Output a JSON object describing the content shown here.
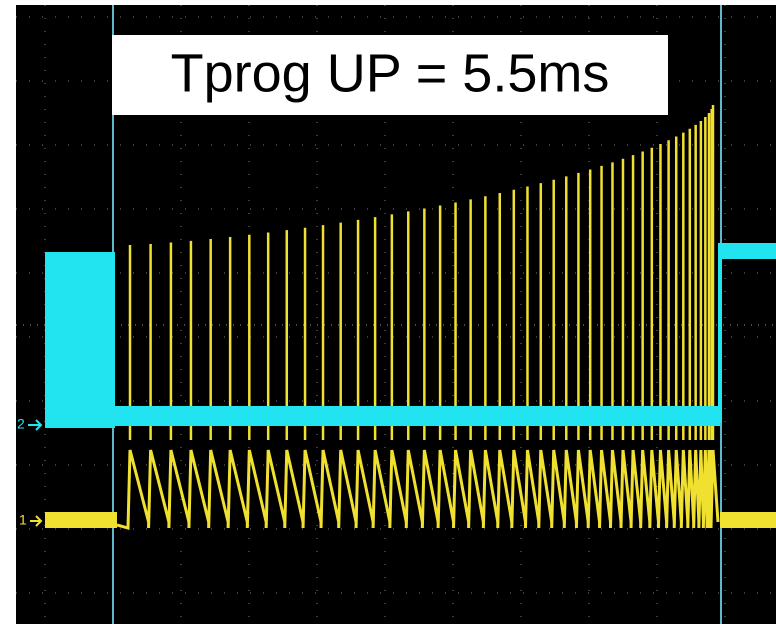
{
  "title": "Tprog UP = 5.5ms",
  "channels": [
    {
      "label": "2"
    },
    {
      "label": "1"
    }
  ]
}
